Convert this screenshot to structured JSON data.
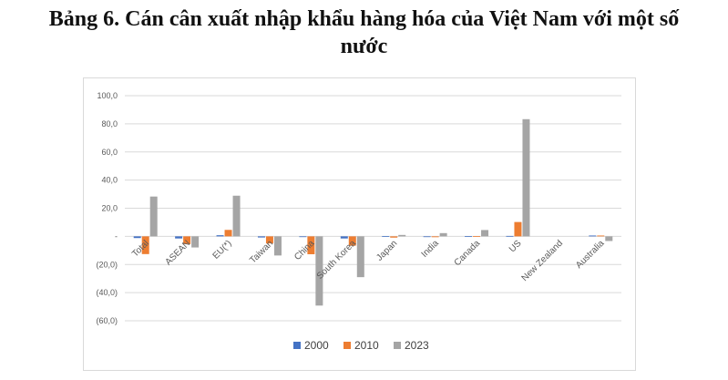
{
  "title_line1": "Bảng 6. Cán cân xuất nhập khẩu hàng hóa của Việt Nam với một số",
  "title_line2": "nước",
  "chart_data": {
    "type": "bar",
    "categories": [
      "Total",
      "ASEAN",
      "EU(*)",
      "Taiwan",
      "China",
      "South Korea",
      "Japan",
      "India",
      "Canada",
      "US",
      "New Zealand",
      "Australia"
    ],
    "series": [
      {
        "name": "2000",
        "color": "#4472c4",
        "values": [
          -1.2,
          -1.5,
          0.8,
          -0.8,
          -0.5,
          -1.5,
          0.2,
          -0.1,
          0.1,
          0.3,
          0.0,
          0.6
        ]
      },
      {
        "name": "2010",
        "color": "#ed7d31",
        "values": [
          -12.6,
          -5.5,
          4.6,
          -5.0,
          -12.7,
          -6.6,
          -0.9,
          -0.6,
          0.2,
          10.2,
          0.0,
          0.6
        ]
      },
      {
        "name": "2023",
        "color": "#a5a5a5",
        "values": [
          28.3,
          -7.9,
          28.9,
          -13.6,
          -49.2,
          -29.0,
          1.0,
          2.3,
          4.5,
          83.3,
          0.0,
          -3.3
        ]
      }
    ],
    "ylim": [
      -60,
      100
    ],
    "yticks": [
      100,
      80,
      60,
      40,
      20,
      0,
      -20,
      -40,
      -60
    ],
    "ytick_labels": [
      "100,0",
      "80,0",
      "60,0",
      "40,0",
      "20,0",
      "-",
      "(20,0)",
      "(40,0)",
      "(60,0)"
    ],
    "grid": true,
    "legend_position": "bottom",
    "xlabel": "",
    "ylabel": ""
  }
}
